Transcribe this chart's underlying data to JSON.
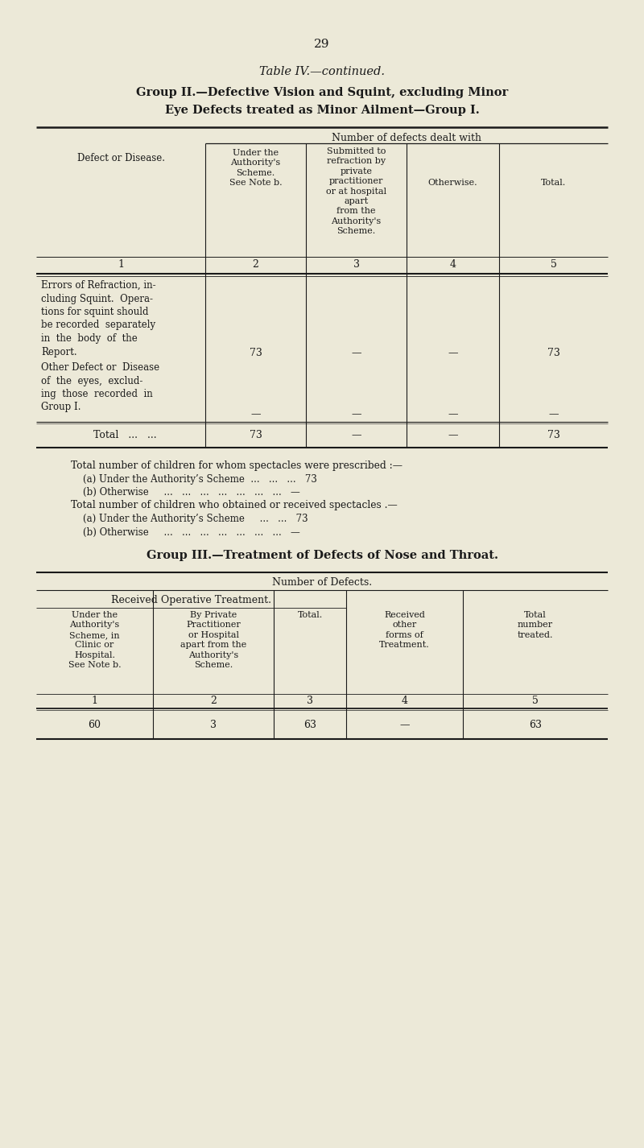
{
  "page_number": "29",
  "title1": "Table IV.—continued.",
  "title2": "Group II.—Defective Vision and Squint, excluding Minor",
  "title3": "Eye Defects treated as Minor Ailment—Group I.",
  "bg_color": "#ece9d8",
  "text_color": "#1a1a1a",
  "table1_header": "Number of defects dealt with",
  "t1_col1_header": "Defect or Disease.",
  "t1_col2_header": "Under the\nAuthority's\nScheme.\nSee Note b.",
  "t1_col3_header": "Submitted to\nrefraction by\nprivate\npractitioner\nor at hospital\napart\nfrom the\nAuthority's\nScheme.",
  "t1_col4_header": "Otherwise.",
  "t1_col5_header": "Total.",
  "t1_col_numbers": [
    "1",
    "2",
    "3",
    "4",
    "5"
  ],
  "t1_row1_label": "Errors of Refraction, in-\ncluding Squint.  Opera-\ntions for squint should\nbe recorded  separately\nin  the  body  of  the\nReport.",
  "t1_row1_vals": [
    "73",
    "—",
    "—",
    "73"
  ],
  "t1_row2_label": "Other Defect or  Disease\nof  the  eyes,  exclud-\ning  those  recorded  in\nGroup I.",
  "t1_row2_vals": [
    "—",
    "—",
    "—",
    "—"
  ],
  "t1_total_label": "Total   ...   ...",
  "t1_total_vals": [
    "73",
    "—",
    "—",
    "73"
  ],
  "notes": [
    "Total number of children for whom spectacles were prescribed :—",
    "    (a) Under the Authority’s Scheme  ...   ...   ...   73",
    "    (b) Otherwise     ...   ...   ...   ...   ...   ...   ...   —",
    "Total number of children who obtained or received spectacles .—",
    "    (a) Under the Authority’s Scheme     ...   ...   73",
    "    (b) Otherwise     ...   ...   ...   ...   ...   ...   ...   —"
  ],
  "group3_title": "Group III.—Treatment of Defects of Nose and Throat.",
  "table2_header": "Number of Defects.",
  "t2_subheader": "Received Operative Treatment.",
  "t2_col1_header": "Under the\nAuthority's\nScheme, in\nClinic or\nHospital.\nSee Note b.",
  "t2_col2_header": "By Private\nPractitioner\nor Hospital\napart from the\nAuthority's\nScheme.",
  "t2_col3_header": "Total.",
  "t2_col4_header": "Received\nother\nforms of\nTreatment.",
  "t2_col5_header": "Total\nnumber\ntreated.",
  "t2_col_numbers": [
    "1",
    "2",
    "3",
    "4",
    "5"
  ],
  "t2_row1_vals": [
    "60",
    "3",
    "63",
    "—",
    "63"
  ]
}
